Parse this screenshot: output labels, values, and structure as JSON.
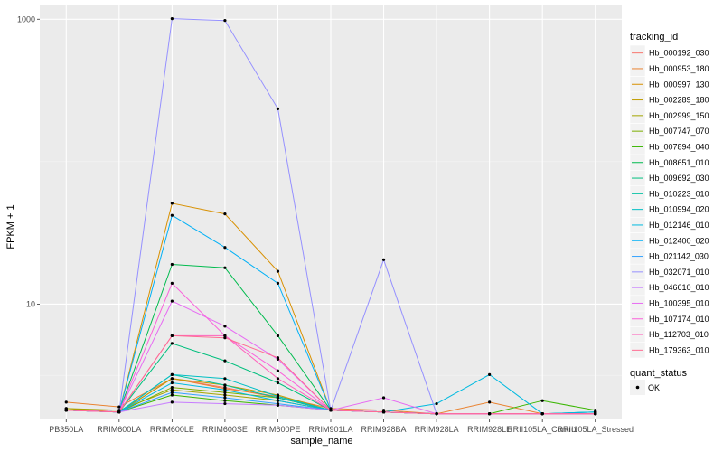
{
  "chart_data": {
    "type": "line",
    "title": "",
    "xlabel": "sample_name",
    "ylabel": "FPKM + 1",
    "y_scale": "log10",
    "ylim": [
      1.55,
      1250
    ],
    "y_ticks": [
      10,
      1000
    ],
    "y_tick_labels": [
      "10",
      "1000"
    ],
    "categories": [
      "PB350LA",
      "RRIM600LA",
      "RRIM600LE",
      "RRIM600SE",
      "RRIM600PE",
      "RRIM901LA",
      "RRIM928BA",
      "RRIM928LA",
      "RRIM928LE",
      "RRII105LA_Control",
      "RRII105LA_Stressed"
    ],
    "grid": true,
    "legend_position": "right",
    "series": [
      {
        "name": "Hb_000192_030",
        "color": "#F8766D",
        "values": [
          1.8,
          1.75,
          3.0,
          2.6,
          2.2,
          1.8,
          1.75,
          1.7,
          1.7,
          1.7,
          1.7
        ]
      },
      {
        "name": "Hb_000953_180",
        "color": "#EA8331",
        "values": [
          2.05,
          1.9,
          3.0,
          2.55,
          2.25,
          1.85,
          1.8,
          1.7,
          2.05,
          1.7,
          1.7
        ]
      },
      {
        "name": "Hb_000997_130",
        "color": "#D89000",
        "values": [
          1.85,
          1.75,
          51,
          43,
          17,
          1.8,
          1.75,
          1.7,
          1.7,
          1.7,
          1.7
        ]
      },
      {
        "name": "Hb_002289_180",
        "color": "#C09B00",
        "values": [
          1.8,
          1.75,
          3.0,
          2.7,
          2.3,
          1.8,
          1.75,
          1.7,
          1.7,
          1.7,
          1.7
        ]
      },
      {
        "name": "Hb_002999_150",
        "color": "#A3A500",
        "values": [
          1.85,
          1.8,
          2.5,
          2.3,
          2.1,
          1.8,
          1.75,
          1.7,
          1.7,
          1.7,
          1.7
        ]
      },
      {
        "name": "Hb_007747_070",
        "color": "#7CAE00",
        "values": [
          1.8,
          1.75,
          2.6,
          2.4,
          2.2,
          1.8,
          1.75,
          1.7,
          1.7,
          1.7,
          1.7
        ]
      },
      {
        "name": "Hb_007894_040",
        "color": "#39B600",
        "values": [
          1.8,
          1.75,
          2.3,
          2.1,
          1.95,
          1.8,
          1.75,
          1.7,
          1.7,
          2.1,
          1.8
        ]
      },
      {
        "name": "Hb_008651_010",
        "color": "#00BB4E",
        "values": [
          1.8,
          1.75,
          19,
          18,
          6,
          1.8,
          1.75,
          1.7,
          1.7,
          1.7,
          1.7
        ]
      },
      {
        "name": "Hb_009692_030",
        "color": "#00BF7D",
        "values": [
          1.8,
          1.75,
          5.3,
          4.0,
          2.8,
          1.8,
          1.75,
          1.7,
          1.7,
          1.7,
          1.7
        ]
      },
      {
        "name": "Hb_010223_010",
        "color": "#00C1A3",
        "values": [
          1.8,
          1.75,
          3.2,
          2.7,
          2.2,
          1.8,
          1.75,
          1.7,
          1.7,
          1.7,
          1.75
        ]
      },
      {
        "name": "Hb_010994_020",
        "color": "#00BFC4",
        "values": [
          1.8,
          1.75,
          3.2,
          3.0,
          2.25,
          1.8,
          1.75,
          1.7,
          1.7,
          1.7,
          1.75
        ]
      },
      {
        "name": "Hb_012146_010",
        "color": "#00BAE0",
        "values": [
          1.8,
          1.75,
          2.8,
          2.5,
          2.1,
          1.8,
          1.75,
          2.0,
          3.2,
          1.7,
          1.75
        ]
      },
      {
        "name": "Hb_012400_020",
        "color": "#00B0F6",
        "values": [
          1.8,
          1.75,
          42,
          25,
          14,
          1.8,
          1.75,
          1.7,
          1.7,
          1.7,
          1.7
        ]
      },
      {
        "name": "Hb_021142_030",
        "color": "#35A2FF",
        "values": [
          1.8,
          1.75,
          2.4,
          2.2,
          2.0,
          1.8,
          1.75,
          1.7,
          1.7,
          1.7,
          1.7
        ]
      },
      {
        "name": "Hb_032071_010",
        "color": "#9590FF",
        "values": [
          1.8,
          1.75,
          1010,
          980,
          235,
          1.8,
          20.5,
          1.7,
          1.7,
          1.7,
          1.7
        ]
      },
      {
        "name": "Hb_046610_010",
        "color": "#C77CFF",
        "values": [
          1.8,
          1.75,
          2.05,
          2.0,
          1.95,
          1.8,
          1.75,
          1.7,
          1.7,
          1.7,
          1.7
        ]
      },
      {
        "name": "Hb_100395_010",
        "color": "#E76BF3",
        "values": [
          1.8,
          1.75,
          10.5,
          7.0,
          4.1,
          1.8,
          2.2,
          1.7,
          1.7,
          1.7,
          1.7
        ]
      },
      {
        "name": "Hb_107174_010",
        "color": "#FA62DB",
        "values": [
          1.8,
          1.75,
          14,
          6.0,
          3.4,
          1.8,
          1.75,
          1.7,
          1.7,
          1.7,
          1.7
        ]
      },
      {
        "name": "Hb_112703_010",
        "color": "#FF62BC",
        "values": [
          1.8,
          1.75,
          6.0,
          6.0,
          3.0,
          1.8,
          1.75,
          1.7,
          1.7,
          1.7,
          1.7
        ]
      },
      {
        "name": "Hb_179363_010",
        "color": "#FF6C91",
        "values": [
          1.8,
          1.75,
          6.0,
          5.8,
          4.2,
          1.8,
          1.75,
          1.7,
          1.7,
          1.7,
          1.7
        ]
      }
    ],
    "legend_title": "tracking_id",
    "shape_legend": {
      "title": "quant_status",
      "items": [
        "OK"
      ]
    }
  }
}
